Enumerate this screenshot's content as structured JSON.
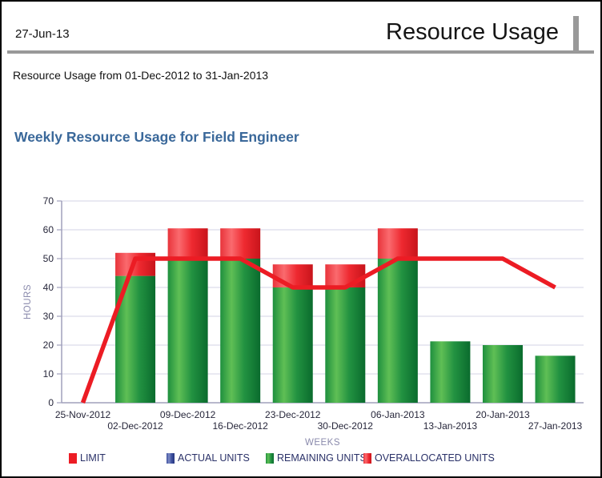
{
  "page": {
    "date": "27-Jun-13",
    "report_title": "Resource Usage",
    "subtitle": "Resource Usage from 01-Dec-2012 to 31-Jan-2013"
  },
  "chart_data": {
    "type": "bar",
    "subtype": "stacked-bars-with-limit-line",
    "title": "Weekly Resource Usage for Field Engineer",
    "xlabel": "WEEKS",
    "ylabel": "HOURS",
    "ylim": [
      0,
      70
    ],
    "ytick_step": 10,
    "grid": true,
    "legend_position": "bottom",
    "categories": [
      "25-Nov-2012",
      "02-Dec-2012",
      "09-Dec-2012",
      "16-Dec-2012",
      "23-Dec-2012",
      "30-Dec-2012",
      "06-Jan-2013",
      "13-Jan-2013",
      "20-Jan-2013",
      "27-Jan-2013"
    ],
    "series": [
      {
        "name": "LIMIT",
        "key": "limit",
        "type": "line",
        "color": "#ec1c24",
        "values": [
          0,
          50,
          50,
          50,
          40,
          40,
          50,
          50,
          50,
          40
        ]
      },
      {
        "name": "ACTUAL UNITS",
        "key": "actual",
        "type": "bar",
        "color": "#3d4f9e",
        "values": [
          0,
          0,
          0,
          0,
          0,
          0,
          0,
          0,
          0,
          0
        ]
      },
      {
        "name": "REMAINING UNITS",
        "key": "remaining",
        "type": "bar",
        "color": "#1e8f3e",
        "values": [
          0,
          44,
          50,
          50,
          40,
          40,
          50,
          21.3,
          20,
          16.3
        ]
      },
      {
        "name": "OVERALLOCATED UNITS",
        "key": "overallocated",
        "type": "bar",
        "color": "#ec1c24",
        "values": [
          0,
          8,
          10.5,
          10.5,
          8,
          8,
          10.5,
          0,
          0,
          0
        ]
      }
    ]
  },
  "colors": {
    "chart_title": "#3a689a",
    "header_accent": "#999999",
    "gridline": "#dcdce9",
    "axis": "#a0a0bc",
    "tick_text": "#26263a",
    "axis_title_text": "#8a8aac",
    "legend_text": "#2a3168",
    "limit_red": "#ec1c24",
    "remaining_green": "#1e8f3e",
    "actual_blue": "#3d4f9e"
  }
}
